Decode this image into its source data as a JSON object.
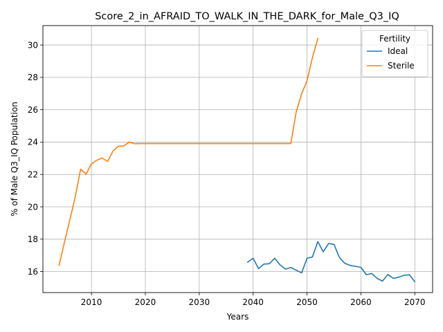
{
  "chart_data": {
    "type": "line",
    "title": "Score_2_in_AFRAID_TO_WALK_IN_THE_DARK_for_Male_Q3_IQ",
    "xlabel": "Years",
    "ylabel": "% of Male Q3_IQ Population",
    "xlim": [
      2001,
      2073.3
    ],
    "ylim": [
      14.7,
      31.2
    ],
    "xticks": [
      2010,
      2020,
      2030,
      2040,
      2050,
      2060,
      2070
    ],
    "yticks": [
      16,
      18,
      20,
      22,
      24,
      26,
      28,
      30
    ],
    "grid": true,
    "legend": {
      "title": "Fertility",
      "placement": "top-right"
    },
    "series": [
      {
        "name": "Ideal",
        "color": "#1f77b4",
        "x": [
          2039,
          2040,
          2041,
          2042,
          2043,
          2044,
          2045,
          2046,
          2047,
          2048,
          2049,
          2050,
          2051,
          2052,
          2053,
          2054,
          2055,
          2056,
          2057,
          2058,
          2059,
          2060,
          2061,
          2062,
          2063,
          2064,
          2065,
          2066,
          2067,
          2068,
          2069,
          2070
        ],
        "y": [
          16.58,
          16.82,
          16.18,
          16.46,
          16.48,
          16.82,
          16.41,
          16.15,
          16.25,
          16.08,
          15.92,
          16.82,
          16.9,
          17.85,
          17.22,
          17.73,
          17.68,
          16.87,
          16.51,
          16.38,
          16.32,
          16.26,
          15.8,
          15.88,
          15.58,
          15.41,
          15.82,
          15.58,
          15.65,
          15.77,
          15.8,
          15.37
        ]
      },
      {
        "name": "Sterile",
        "color": "#ff7f0e",
        "x": [
          2004,
          2005,
          2006,
          2007,
          2008,
          2009,
          2010,
          2011,
          2012,
          2013,
          2014,
          2015,
          2016,
          2017,
          2018,
          2019,
          2020,
          2025,
          2030,
          2035,
          2040,
          2045,
          2046,
          2047,
          2048,
          2049,
          2050,
          2051,
          2052
        ],
        "y": [
          16.38,
          17.82,
          19.2,
          20.62,
          22.33,
          22.02,
          22.65,
          22.88,
          23.02,
          22.8,
          23.45,
          23.74,
          23.76,
          24.0,
          23.9,
          23.91,
          23.91,
          23.91,
          23.91,
          23.91,
          23.91,
          23.91,
          23.91,
          23.91,
          25.88,
          26.98,
          27.8,
          29.22,
          30.4
        ]
      }
    ]
  }
}
